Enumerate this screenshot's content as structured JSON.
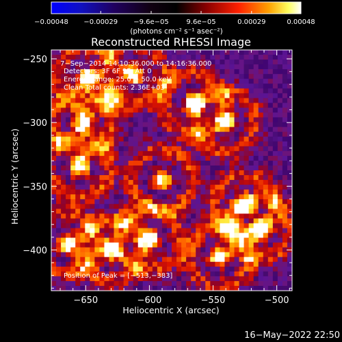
{
  "chart_data": {
    "type": "heatmap",
    "title": "Reconstructed RHESSI Image",
    "xlabel": "Heliocentric X (arcsec)",
    "ylabel": "Heliocentric Y (arcsec)",
    "xlim": [
      -677,
      -488
    ],
    "ylim": [
      -432,
      -243
    ],
    "xticks": [
      {
        "v": -650,
        "label": "−650"
      },
      {
        "v": -600,
        "label": "−600"
      },
      {
        "v": -550,
        "label": "−550"
      },
      {
        "v": -500,
        "label": "−500"
      }
    ],
    "yticks": [
      {
        "v": -250,
        "label": "−250"
      },
      {
        "v": -300,
        "label": "−300"
      },
      {
        "v": -350,
        "label": "−350"
      },
      {
        "v": -400,
        "label": "−400"
      }
    ],
    "colorbar": {
      "range": [
        -0.00048,
        0.00048
      ],
      "ticks": [
        {
          "v": -0.00048,
          "label": "−0.00048"
        },
        {
          "v": -0.00029,
          "label": "−0.00029"
        },
        {
          "v": -9.6e-05,
          "label": "−9.6e−05"
        },
        {
          "v": 9.6e-05,
          "label": "9.6e−05"
        },
        {
          "v": 0.00029,
          "label": "0.00029"
        },
        {
          "v": 0.00048,
          "label": "0.00048"
        }
      ],
      "units_label": "(photons cm⁻² s⁻¹ asec⁻²)"
    },
    "info_lines": [
      "7−Sep−2014 14:10:36.000 to 14:16:36.000",
      "Detectors: 3F 6F 9F, Att 0",
      "Energy Range: 25.0 − 50.0 keV",
      "Clean    Total counts: 2.36E+03"
    ],
    "peak_label": "Position of Peak = [−513,−383]",
    "peak": {
      "x": -513,
      "y": -383
    },
    "bright_sources": [
      {
        "x": -648,
        "y": -265
      },
      {
        "x": -612,
        "y": -262
      },
      {
        "x": -652,
        "y": -300
      },
      {
        "x": -655,
        "y": -335
      },
      {
        "x": -565,
        "y": -285
      },
      {
        "x": -540,
        "y": -300
      },
      {
        "x": -630,
        "y": -400
      },
      {
        "x": -665,
        "y": -395
      },
      {
        "x": -590,
        "y": -345
      },
      {
        "x": -600,
        "y": -392
      },
      {
        "x": -513,
        "y": -383
      },
      {
        "x": -525,
        "y": -365
      },
      {
        "x": -545,
        "y": -405
      }
    ],
    "pixels_per_axis": 50
  },
  "timestamp": "16−May−2022 22:50"
}
